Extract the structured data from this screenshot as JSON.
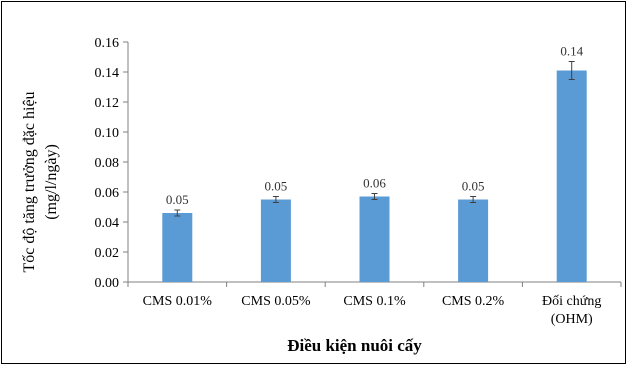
{
  "chart_data": {
    "type": "bar",
    "categories": [
      "CMS 0.01%",
      "CMS 0.05%",
      "CMS 0.1%",
      "CMS 0.2%",
      "Đối chứng (OHM)"
    ],
    "category_lines": [
      [
        "CMS 0.01%"
      ],
      [
        "CMS 0.05%"
      ],
      [
        "CMS 0.1%"
      ],
      [
        "CMS 0.2%"
      ],
      [
        "Đối chứng",
        "(OHM)"
      ]
    ],
    "values": [
      0.046,
      0.055,
      0.057,
      0.055,
      0.141
    ],
    "errors": [
      0.002,
      0.002,
      0.002,
      0.002,
      0.006
    ],
    "data_labels": [
      "0.05",
      "0.05",
      "0.06",
      "0.05",
      "0.14"
    ],
    "ylabel_lines": [
      "Tốc độ tăng trưởng đặc hiệu",
      "(mg/l/ngày)"
    ],
    "xlabel": "Điều kiện nuôi cấy",
    "yticks": [
      "0.00",
      "0.02",
      "0.04",
      "0.06",
      "0.08",
      "0.10",
      "0.12",
      "0.14",
      "0.16"
    ],
    "ylim": [
      0,
      0.16
    ],
    "grid": false,
    "legend": "none",
    "bar_color": "#5b9bd5",
    "error_color": "#404040",
    "axis_color": "#808080"
  }
}
